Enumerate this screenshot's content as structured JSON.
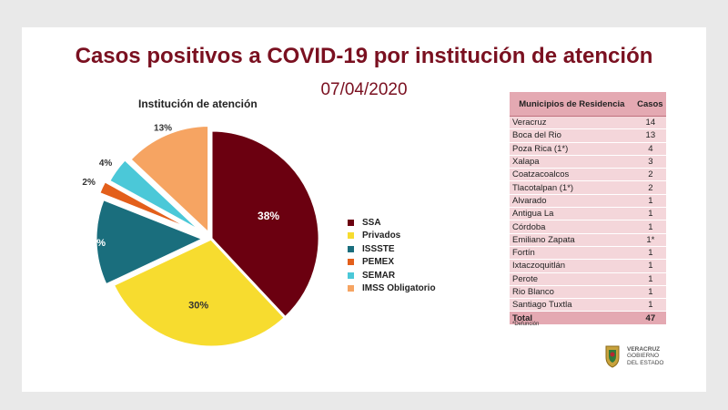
{
  "header": {
    "title": "Casos positivos a COVID-19  por institución de atención",
    "date": "07/04/2020"
  },
  "chart_data": {
    "type": "pie",
    "title": "Institución de atención",
    "slices": [
      {
        "label": "SSA",
        "value": 38,
        "display": "38%",
        "color": "#6b0010"
      },
      {
        "label": "Privados",
        "value": 30,
        "display": "30%",
        "color": "#f7dc2f"
      },
      {
        "label": "ISSSTE",
        "value": 13,
        "display": "13%",
        "color": "#1a6e7d"
      },
      {
        "label": "PEMEX",
        "value": 2,
        "display": "2%",
        "color": "#e35f1b"
      },
      {
        "label": "SEMAR",
        "value": 4,
        "display": "4%",
        "color": "#4bc8d8"
      },
      {
        "label": "IMSS Obligatorio",
        "value": 13,
        "display": "13%",
        "color": "#f6a462"
      }
    ],
    "legend_position": "right"
  },
  "table": {
    "headers": [
      "Municipios de Residencia",
      "Casos"
    ],
    "rows": [
      [
        "Veracruz",
        "14"
      ],
      [
        "Boca del Rio",
        "13"
      ],
      [
        "Poza Rica (1*)",
        "4"
      ],
      [
        "Xalapa",
        "3"
      ],
      [
        "Coatzacoalcos",
        "2"
      ],
      [
        "Tlacotalpan (1*)",
        "2"
      ],
      [
        "Alvarado",
        "1"
      ],
      [
        "Antigua La",
        "1"
      ],
      [
        "Córdoba",
        "1"
      ],
      [
        "Emiliano Zapata",
        "1*"
      ],
      [
        "Fortín",
        "1"
      ],
      [
        "Ixtaczoquitlán",
        "1"
      ],
      [
        "Perote",
        "1"
      ],
      [
        "Rio Blanco",
        "1"
      ],
      [
        "Santiago Tuxtla",
        "1"
      ]
    ],
    "total": [
      "Total",
      "47"
    ],
    "footnote": "*Defunción"
  },
  "logo": {
    "line1": "VERACRUZ",
    "line2": "GOBIERNO",
    "line3": "DEL ESTADO"
  }
}
